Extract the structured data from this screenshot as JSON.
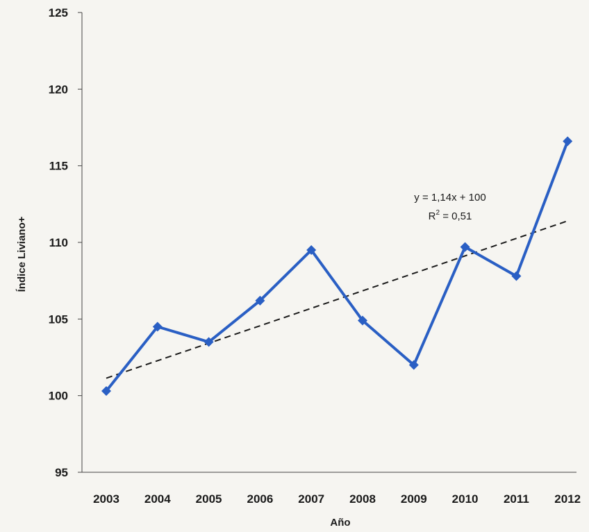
{
  "chart_data": {
    "type": "line",
    "title": "",
    "xlabel": "Año",
    "ylabel": "Índice Liviano+",
    "categories": [
      "2003",
      "2004",
      "2005",
      "2006",
      "2007",
      "2008",
      "2009",
      "2010",
      "2011",
      "2012"
    ],
    "ylim": [
      95,
      125
    ],
    "yticks": [
      95,
      100,
      105,
      110,
      115,
      120,
      125
    ],
    "grid": false,
    "legend": "none",
    "series": [
      {
        "values": [
          100.3,
          104.5,
          103.5,
          106.2,
          109.5,
          104.9,
          102.0,
          109.7,
          107.8,
          116.6
        ],
        "color": "#2a5fc4",
        "marker": "diamond"
      }
    ],
    "trendline": {
      "type": "linear",
      "slope": 1.14,
      "intercept": 100,
      "from": [
        0,
        101.14
      ],
      "to": [
        9,
        111.4
      ],
      "color": "#1a1a1a",
      "style": "dashed",
      "equation_label": "y = 1,14x + 100",
      "r2_prefix": "R",
      "r2_sup": "2",
      "r2_value": " = 0,51"
    }
  }
}
